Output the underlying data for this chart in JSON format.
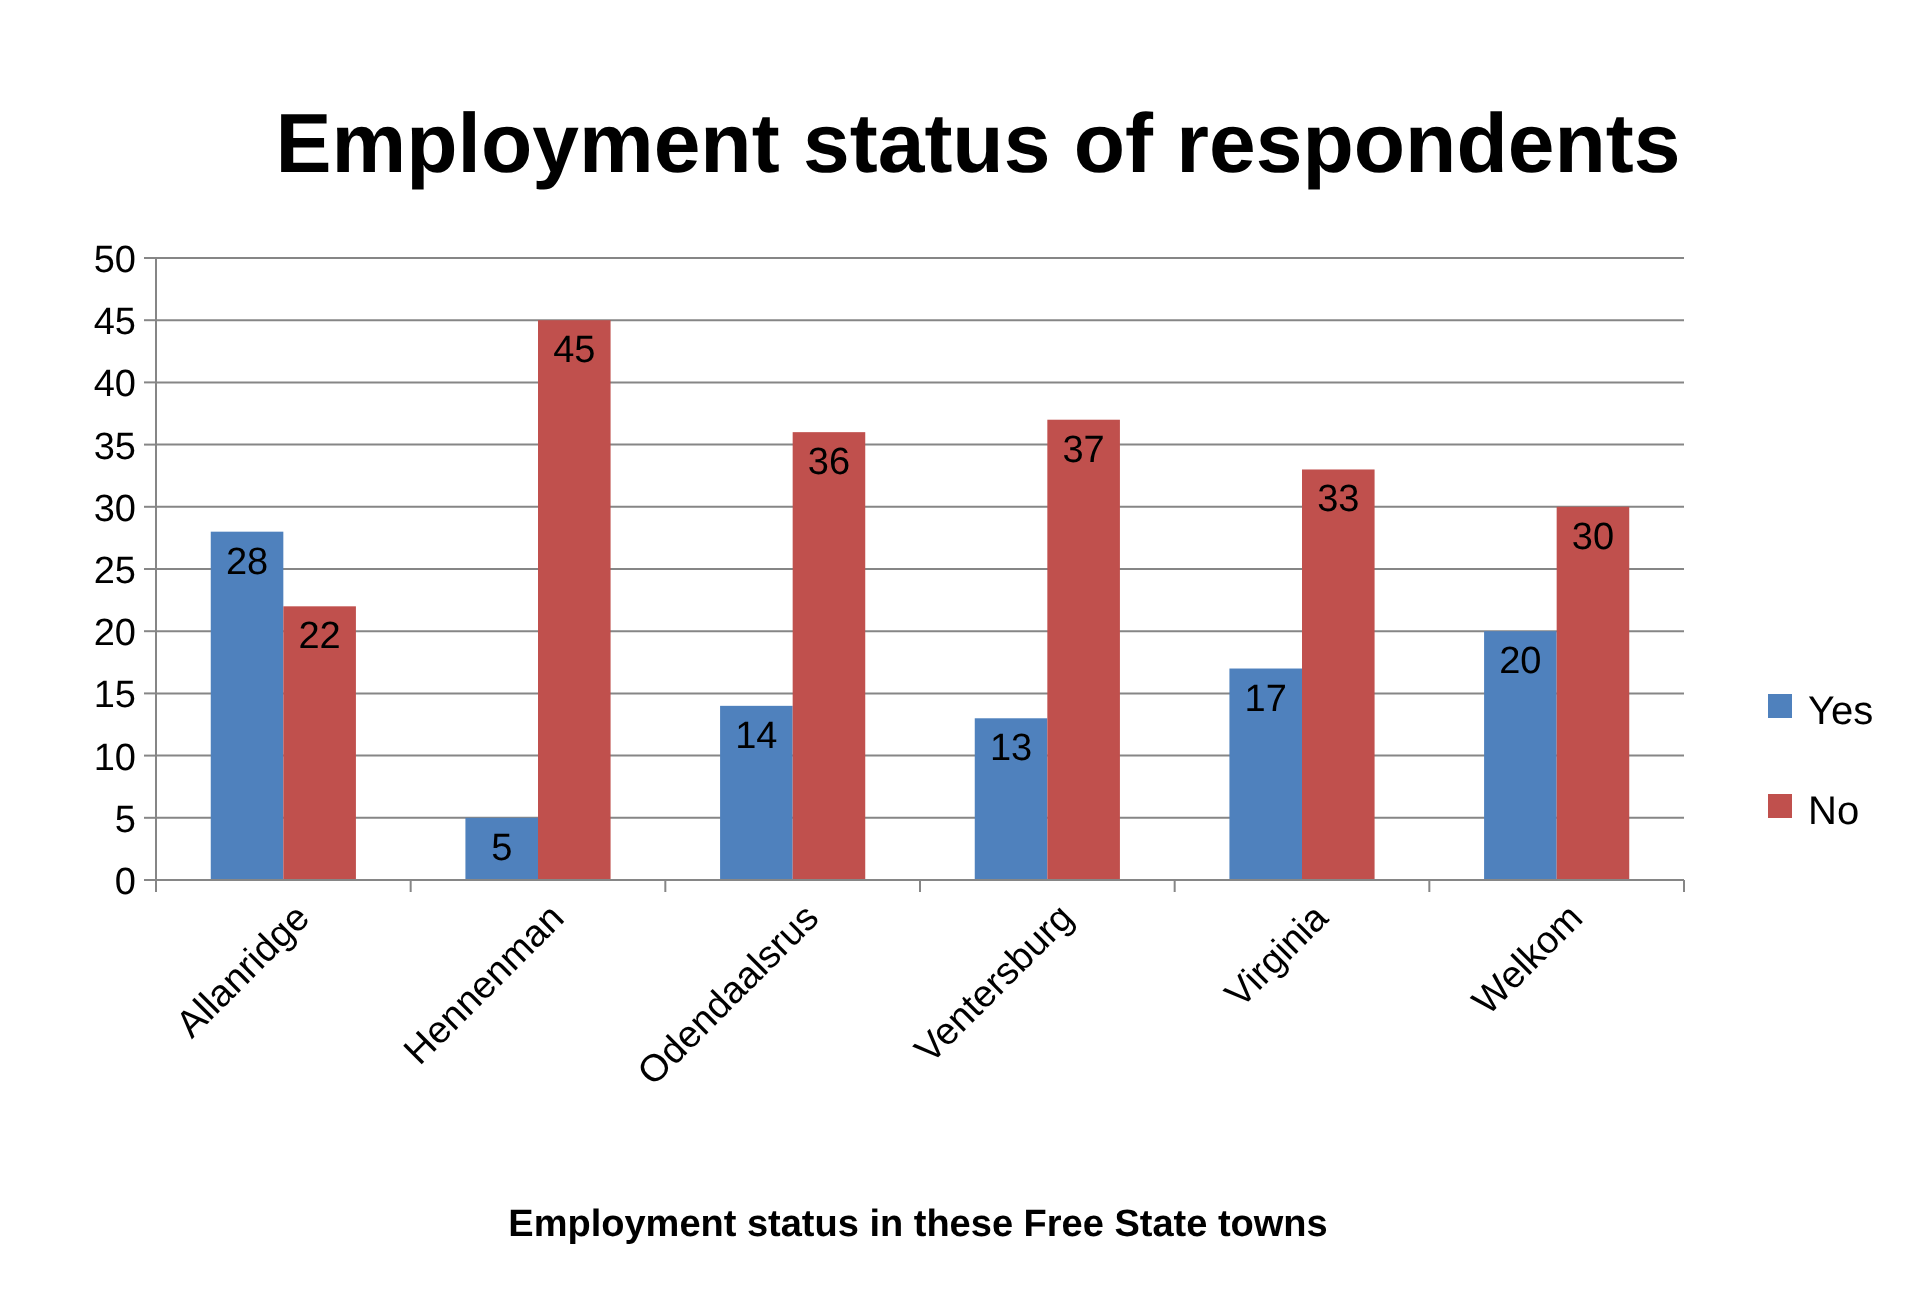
{
  "chart_data": {
    "type": "bar",
    "title": "Employment status of respondents",
    "xlabel": "Employment status in these Free State towns",
    "categories": [
      "Allanridge",
      "Hennenman",
      "Odendaalsrus",
      "Ventersburg",
      "Virginia",
      "Welkom"
    ],
    "series": [
      {
        "name": "Yes",
        "color": "#4f81bd",
        "values": [
          28,
          5,
          14,
          13,
          17,
          20
        ]
      },
      {
        "name": "No",
        "color": "#c0504d",
        "values": [
          22,
          45,
          36,
          37,
          33,
          30
        ]
      }
    ],
    "ylim": [
      0,
      50
    ],
    "yticks": [
      0,
      5,
      10,
      15,
      20,
      25,
      30,
      35,
      40,
      45,
      50
    ],
    "grid": "y",
    "legend": "right",
    "data_labels": true
  }
}
